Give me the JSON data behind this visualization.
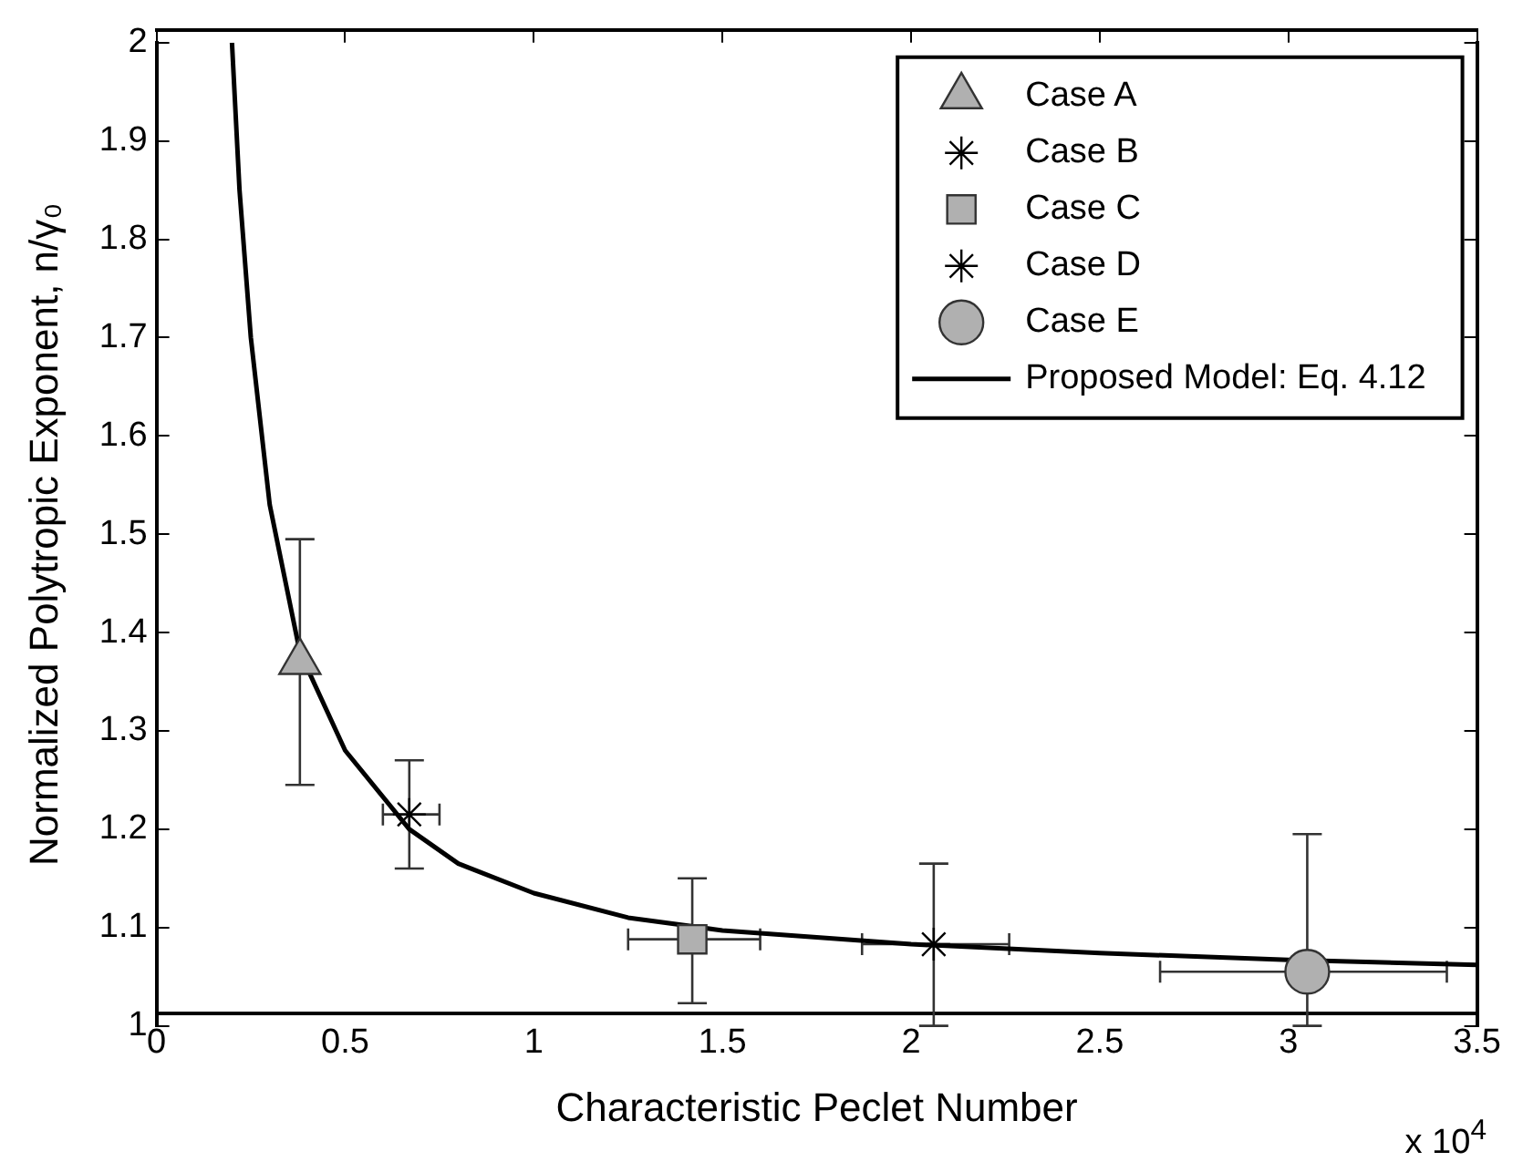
{
  "chart_data": {
    "type": "scatter",
    "xlabel": "Characteristic Peclet Number",
    "ylabel": "Normalized Polytropic Exponent, n/γ₀",
    "xlim": [
      0,
      3.5
    ],
    "xticks": [
      0,
      0.5,
      1,
      1.5,
      2,
      2.5,
      3,
      3.5
    ],
    "ylim": [
      1,
      2
    ],
    "yticks": [
      1,
      1.1,
      1.2,
      1.3,
      1.4,
      1.5,
      1.6,
      1.7,
      1.8,
      1.9,
      2
    ],
    "grid": false,
    "legend": "top right",
    "annotations": [
      "x 10$^{4}$"
    ],
    "series": [
      {
        "name": "Case A",
        "type": "scatter",
        "marker": "triangle",
        "color": "#b0b0b0",
        "x": [
          0.38
        ],
        "values": [
          1.37
        ],
        "errors": [
          [
            1.245,
            1.495
          ]
        ],
        "xerrors": [
          null
        ]
      },
      {
        "name": "Case B",
        "type": "scatter",
        "marker": "cross",
        "color": "#000000",
        "x": [
          0.67
        ],
        "values": [
          1.215
        ],
        "errors": [
          [
            1.16,
            1.27
          ]
        ],
        "xerrors": [
          [
            0.6,
            0.75
          ]
        ]
      },
      {
        "name": "Case C",
        "type": "scatter",
        "marker": "square",
        "color": "#b0b0b0",
        "x": [
          1.42
        ],
        "values": [
          1.088
        ],
        "errors": [
          [
            1.023,
            1.15
          ]
        ],
        "xerrors": [
          [
            1.25,
            1.6
          ]
        ]
      },
      {
        "name": "Case D",
        "type": "scatter",
        "marker": "cross",
        "color": "#000000",
        "x": [
          2.06
        ],
        "values": [
          1.083
        ],
        "errors": [
          [
            1,
            1.165
          ]
        ],
        "xerrors": [
          [
            1.87,
            2.26
          ]
        ]
      },
      {
        "name": "Case E",
        "type": "scatter",
        "marker": "circle",
        "color": "#b0b0b0",
        "x": [
          3.05
        ],
        "values": [
          1.055
        ],
        "errors": [
          [
            1,
            1.195
          ]
        ],
        "xerrors": [
          [
            2.66,
            3.42
          ]
        ]
      },
      {
        "name": "Proposed Model: Eq. 4.12",
        "type": "line",
        "marker": "none",
        "color": "#000000",
        "x": [
          0.2,
          0.22,
          0.25,
          0.3,
          0.38,
          0.5,
          0.67,
          0.8,
          1,
          1.25,
          1.5,
          2,
          2.5,
          3,
          3.5
        ],
        "values": [
          2,
          1.85,
          1.7,
          1.53,
          1.38,
          1.28,
          1.2,
          1.165,
          1.135,
          1.11,
          1.097,
          1.083,
          1.074,
          1.067,
          1.062
        ]
      }
    ]
  }
}
